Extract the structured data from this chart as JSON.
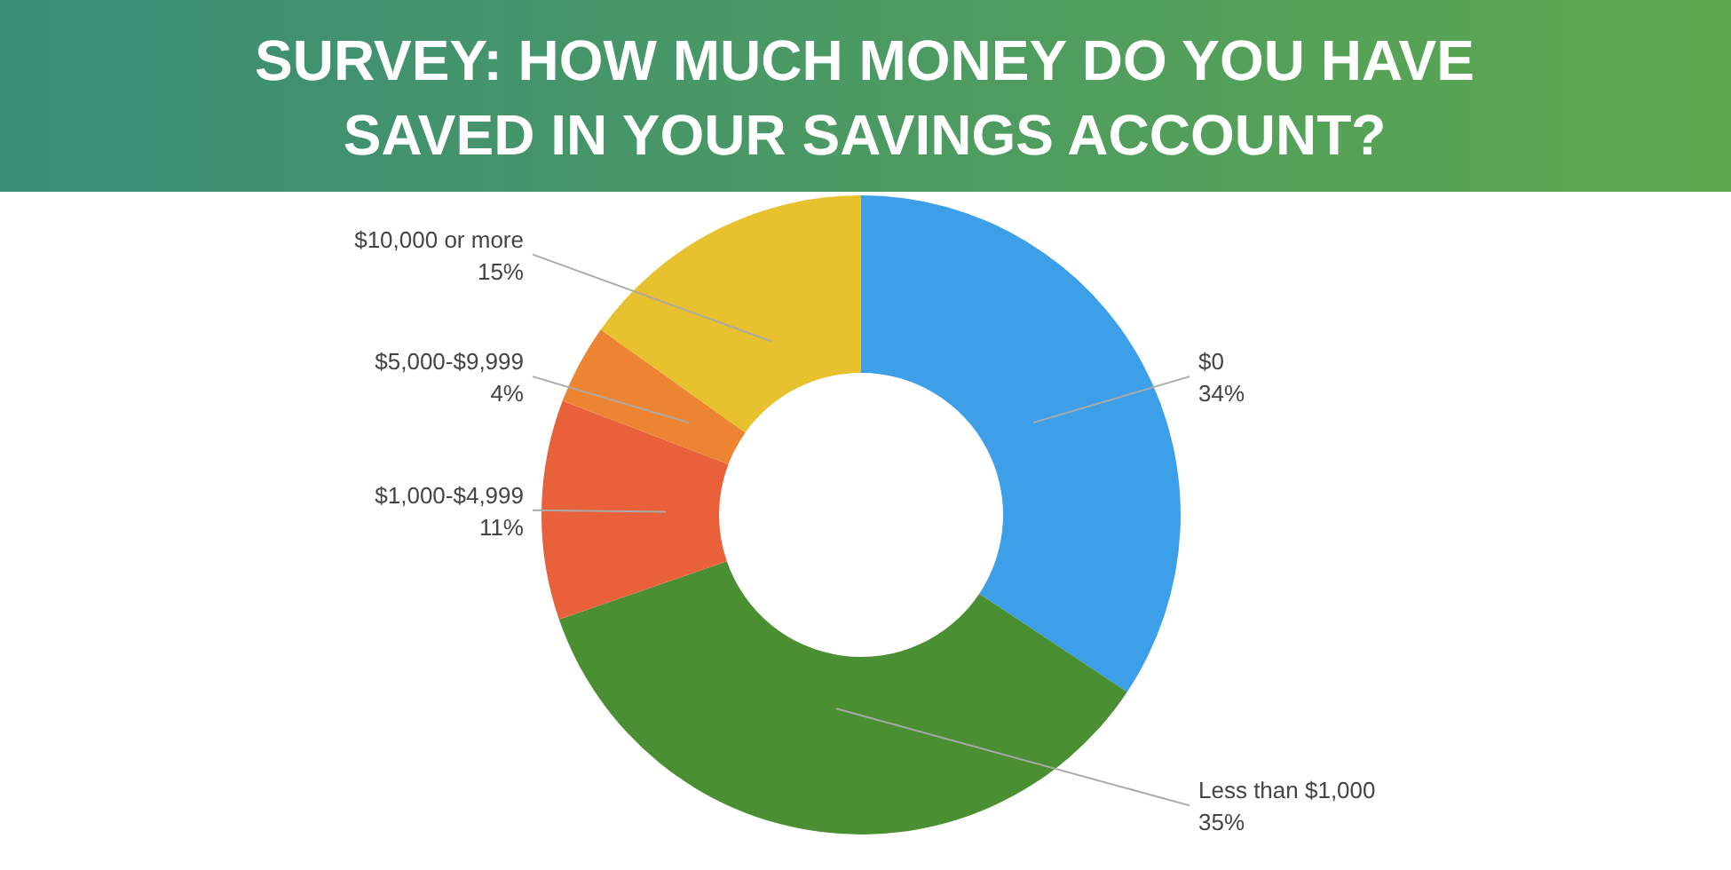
{
  "chart_data": {
    "type": "donut",
    "title": "SURVEY: HOW MUCH MONEY DO YOU HAVE SAVED IN YOUR SAVINGS ACCOUNT?",
    "categories": [
      "$0",
      "Less than $1,000",
      "$1,000-$4,999",
      "$5,000-$9,999",
      "$10,000 or more"
    ],
    "values": [
      34,
      35,
      11,
      4,
      15
    ],
    "value_labels": [
      "34%",
      "35%",
      "11%",
      "4%",
      "15%"
    ],
    "colors": [
      "#3d9fe8",
      "#4a8f32",
      "#e8613a",
      "#ed8431",
      "#e8c12f"
    ]
  }
}
